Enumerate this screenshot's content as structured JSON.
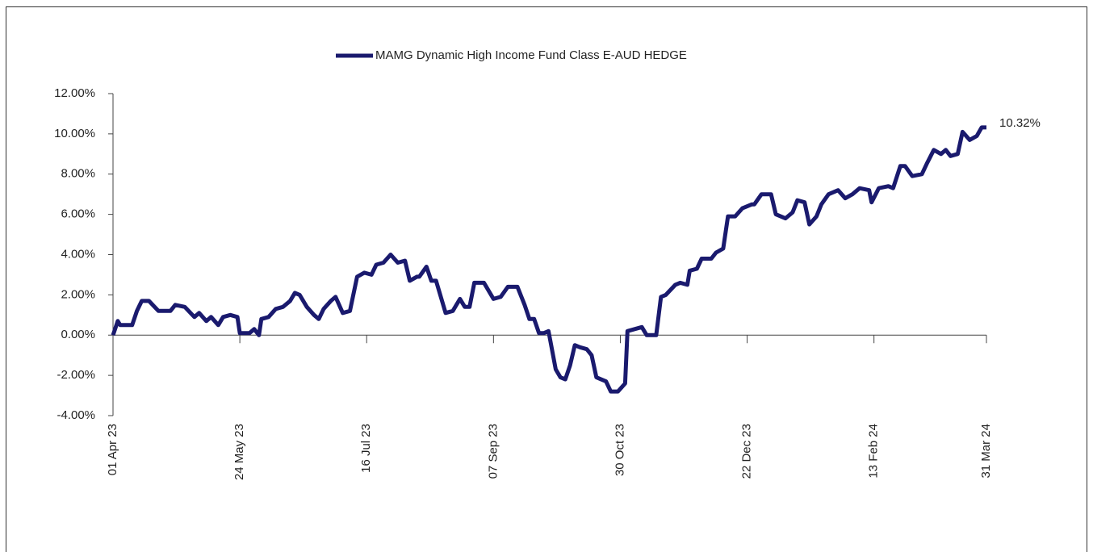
{
  "chart_data": {
    "type": "line",
    "series": [
      {
        "name": "MAMG Dynamic High Income Fund Class E-AUD HEDGE",
        "color": "#1a1a6e",
        "x": [
          "2023-04-01",
          "2023-04-03",
          "2023-04-04",
          "2023-04-09",
          "2023-04-11",
          "2023-04-13",
          "2023-04-16",
          "2023-04-20",
          "2023-04-25",
          "2023-04-27",
          "2023-05-01",
          "2023-05-05",
          "2023-05-07",
          "2023-05-10",
          "2023-05-12",
          "2023-05-15",
          "2023-05-17",
          "2023-05-20",
          "2023-05-23",
          "2023-05-24",
          "2023-05-28",
          "2023-05-30",
          "2023-06-01",
          "2023-06-02",
          "2023-06-05",
          "2023-06-08",
          "2023-06-11",
          "2023-06-14",
          "2023-06-16",
          "2023-06-18",
          "2023-06-21",
          "2023-06-24",
          "2023-06-26",
          "2023-06-28",
          "2023-07-01",
          "2023-07-03",
          "2023-07-06",
          "2023-07-09",
          "2023-07-12",
          "2023-07-15",
          "2023-07-18",
          "2023-07-20",
          "2023-07-23",
          "2023-07-26",
          "2023-07-29",
          "2023-08-01",
          "2023-08-03",
          "2023-08-06",
          "2023-08-07",
          "2023-08-10",
          "2023-08-12",
          "2023-08-14",
          "2023-08-18",
          "2023-08-21",
          "2023-08-24",
          "2023-08-26",
          "2023-08-28",
          "2023-08-30",
          "2023-09-03",
          "2023-09-07",
          "2023-09-10",
          "2023-09-13",
          "2023-09-17",
          "2023-09-20",
          "2023-09-22",
          "2023-09-24",
          "2023-09-26",
          "2023-09-28",
          "2023-09-30",
          "2023-10-03",
          "2023-10-05",
          "2023-10-07",
          "2023-10-09",
          "2023-10-11",
          "2023-10-13",
          "2023-10-16",
          "2023-10-18",
          "2023-10-20",
          "2023-10-22",
          "2023-10-24",
          "2023-10-26",
          "2023-10-29",
          "2023-11-01",
          "2023-11-02",
          "2023-11-05",
          "2023-11-08",
          "2023-11-10",
          "2023-11-14",
          "2023-11-16",
          "2023-11-18",
          "2023-11-22",
          "2023-11-24",
          "2023-11-27",
          "2023-11-28",
          "2023-12-01",
          "2023-12-03",
          "2023-12-07",
          "2023-12-09",
          "2023-12-12",
          "2023-12-14",
          "2023-12-17",
          "2023-12-20",
          "2023-12-24",
          "2023-12-25",
          "2023-12-28",
          "2024-01-01",
          "2024-01-03",
          "2024-01-07",
          "2024-01-10",
          "2024-01-12",
          "2024-01-15",
          "2024-01-17",
          "2024-01-20",
          "2024-01-22",
          "2024-01-25",
          "2024-01-29",
          "2024-02-01",
          "2024-02-04",
          "2024-02-07",
          "2024-02-11",
          "2024-02-12",
          "2024-02-15",
          "2024-02-19",
          "2024-02-21",
          "2024-02-24",
          "2024-02-26",
          "2024-02-29",
          "2024-03-04",
          "2024-03-06",
          "2024-03-09",
          "2024-03-12",
          "2024-03-14",
          "2024-03-16",
          "2024-03-19",
          "2024-03-21",
          "2024-03-24",
          "2024-03-27",
          "2024-03-29",
          "2024-03-31"
        ],
        "values": [
          0,
          0.7,
          0.5,
          0.5,
          1.2,
          1.7,
          1.7,
          1.2,
          1.2,
          1.5,
          1.4,
          0.9,
          1.1,
          0.7,
          0.9,
          0.5,
          0.9,
          1.0,
          0.9,
          0.1,
          0.1,
          0.3,
          0.0,
          0.8,
          0.9,
          1.3,
          1.4,
          1.7,
          2.1,
          2.0,
          1.4,
          1.0,
          0.8,
          1.3,
          1.7,
          1.9,
          1.1,
          1.2,
          2.9,
          3.1,
          3.0,
          3.5,
          3.6,
          4.0,
          3.6,
          3.7,
          2.7,
          2.9,
          2.9,
          3.4,
          2.7,
          2.7,
          1.1,
          1.2,
          1.8,
          1.4,
          1.4,
          2.6,
          2.6,
          1.8,
          1.9,
          2.4,
          2.4,
          1.5,
          0.8,
          0.8,
          0.1,
          0.1,
          0.2,
          -1.7,
          -2.1,
          -2.2,
          -1.5,
          -0.5,
          -0.6,
          -0.7,
          -1.0,
          -2.1,
          -2.2,
          -2.3,
          -2.8,
          -2.8,
          -2.4,
          0.2,
          0.3,
          0.4,
          0.0,
          0.0,
          1.9,
          2.0,
          2.5,
          2.6,
          2.5,
          3.2,
          3.3,
          3.8,
          3.8,
          4.1,
          4.3,
          5.9,
          5.9,
          6.3,
          6.5,
          6.5,
          7.0,
          7.0,
          6.0,
          5.8,
          6.1,
          6.7,
          6.6,
          5.5,
          5.9,
          6.5,
          7.0,
          7.2,
          6.8,
          7.0,
          7.3,
          7.2,
          6.6,
          7.3,
          7.4,
          7.3,
          8.4,
          8.4,
          7.9,
          8.0,
          8.5,
          9.2,
          9.0,
          9.2,
          8.9,
          9.0,
          10.1,
          9.7,
          9.9,
          10.32,
          10.32
        ]
      }
    ],
    "xlim": [
      "2023-04-01",
      "2024-03-31"
    ],
    "xticks": [
      {
        "value": "2023-04-01",
        "label": "01 Apr 23"
      },
      {
        "value": "2023-05-24",
        "label": "24 May 23"
      },
      {
        "value": "2023-07-16",
        "label": "16 Jul 23"
      },
      {
        "value": "2023-09-07",
        "label": "07 Sep 23"
      },
      {
        "value": "2023-10-30",
        "label": "30 Oct 23"
      },
      {
        "value": "2023-12-22",
        "label": "22 Dec 23"
      },
      {
        "value": "2024-02-13",
        "label": "13 Feb 24"
      },
      {
        "value": "2024-03-31",
        "label": "31 Mar 24"
      }
    ],
    "ylim": [
      -4,
      12
    ],
    "yticks": [
      {
        "value": -4,
        "label": "-4.00%"
      },
      {
        "value": -2,
        "label": "-2.00%"
      },
      {
        "value": 0,
        "label": "0.00%"
      },
      {
        "value": 2,
        "label": "2.00%"
      },
      {
        "value": 4,
        "label": "4.00%"
      },
      {
        "value": 6,
        "label": "6.00%"
      },
      {
        "value": 8,
        "label": "8.00%"
      },
      {
        "value": 10,
        "label": "10.00%"
      },
      {
        "value": 12,
        "label": "12.00%"
      }
    ],
    "annotations": [
      {
        "x": "2024-03-31",
        "y": 10.32,
        "label": "10.32%"
      }
    ],
    "legend": "top",
    "grid": false
  }
}
